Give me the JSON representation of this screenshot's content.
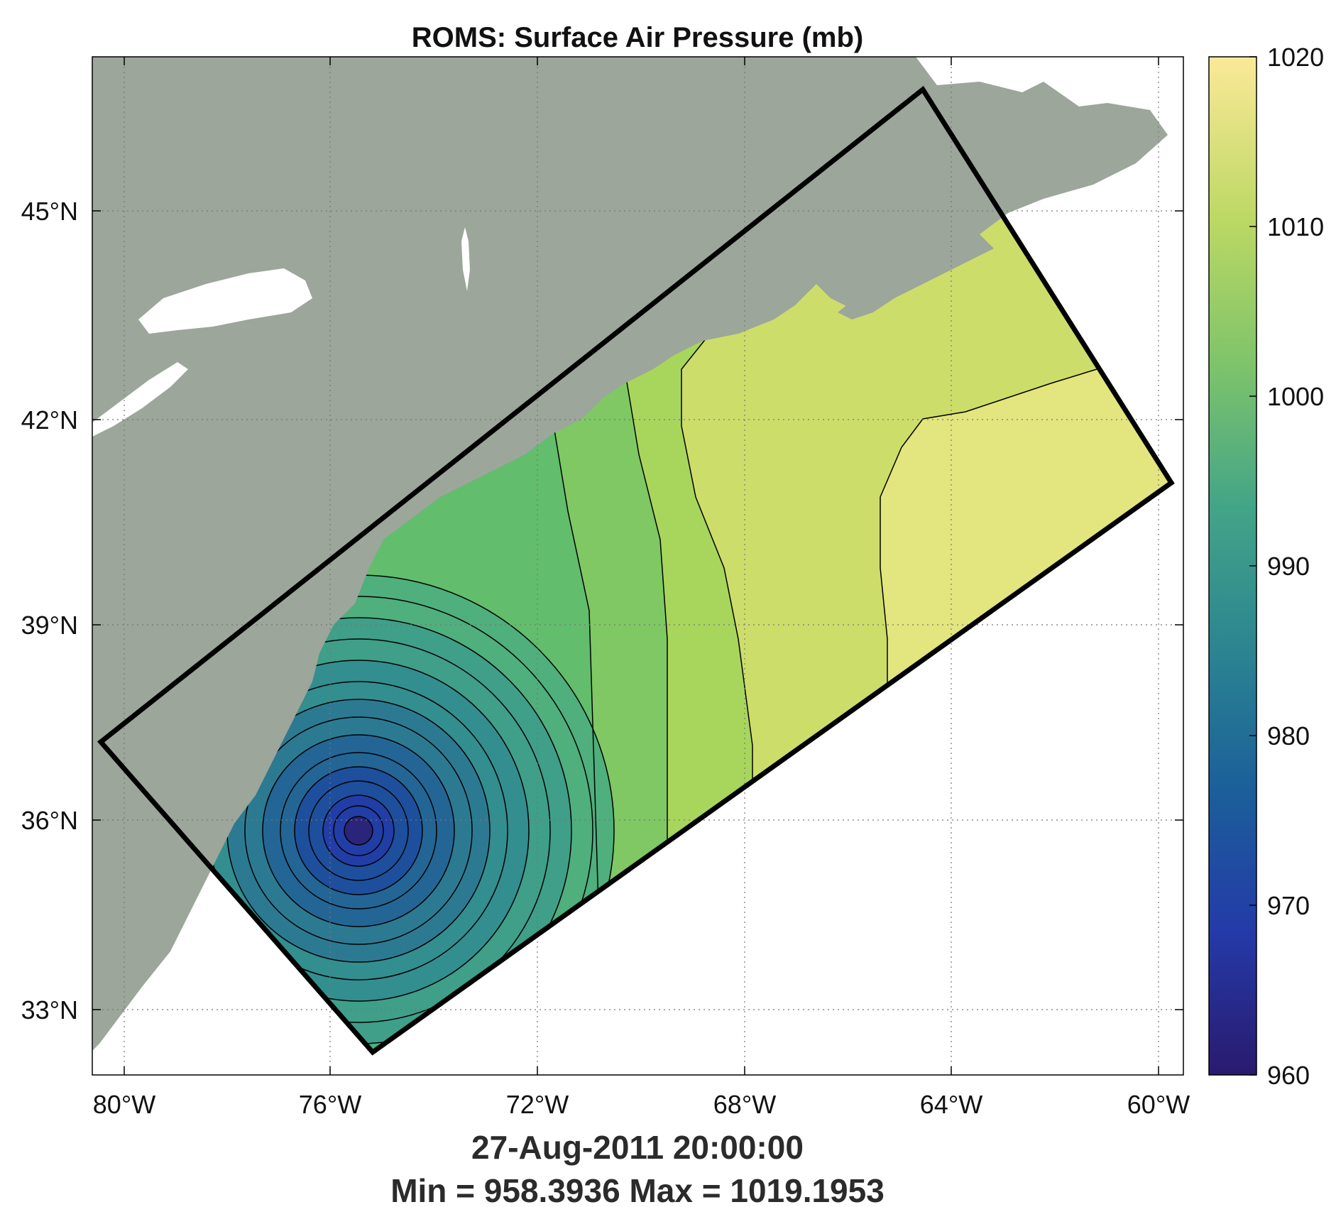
{
  "figure": {
    "title": "ROMS: Surface Air Pressure (mb)",
    "timestamp": "27-Aug-2011 20:00:00",
    "stats": "Min = 958.3936  Max = 1019.1953"
  },
  "map": {
    "lon_ticks": [
      "80°W",
      "76°W",
      "72°W",
      "68°W",
      "64°W",
      "60°W"
    ],
    "lat_ticks": [
      "45°N",
      "42°N",
      "39°N",
      "36°N",
      "33°N"
    ],
    "land_color": "#9ca69b",
    "water_color": "#ffffff",
    "domain_outline_color": "#000000",
    "grid": "dotted"
  },
  "colorbar": {
    "colormap": "parula-like (navy → teal → green → yellow)",
    "min": 960,
    "max": 1020,
    "ticks": [
      "1020",
      "1010",
      "1000",
      "990",
      "980",
      "970",
      "960"
    ]
  },
  "field": {
    "variable": "Surface Air Pressure (mb)",
    "min_value": 958.3936,
    "max_value": 1019.1953,
    "low_center": {
      "lon": -75.7,
      "lat": 35.8
    }
  }
}
